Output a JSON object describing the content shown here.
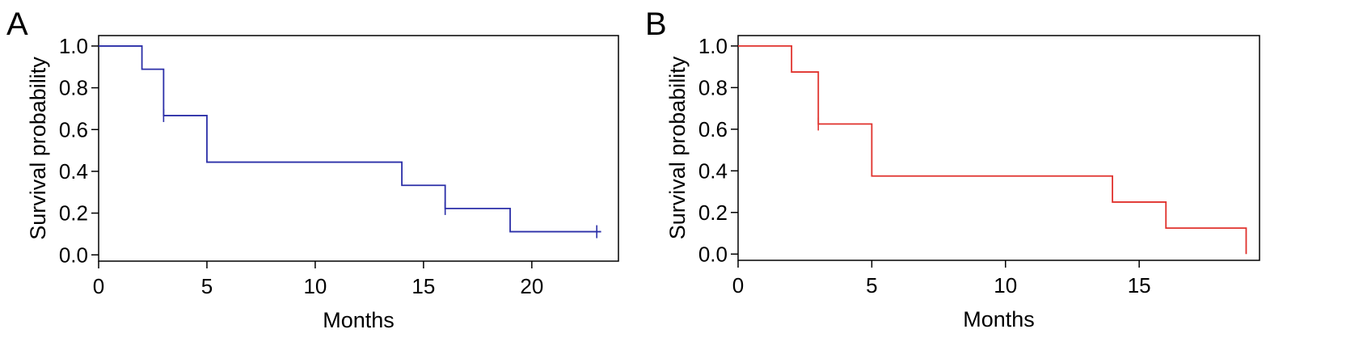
{
  "chart_data": [
    {
      "type": "line",
      "panel_label": "A",
      "title": "",
      "xlabel": "Months",
      "ylabel": "Survival probability",
      "xlim": [
        0,
        24
      ],
      "ylim": [
        -0.03,
        1.05
      ],
      "x_ticks": [
        "0",
        "5",
        "10",
        "15",
        "20"
      ],
      "y_ticks": [
        "0.0",
        "0.2",
        "0.4",
        "0.6",
        "0.8",
        "1.0"
      ],
      "grid": false,
      "legend": "none",
      "series": [
        {
          "step": true,
          "x": [
            0,
            2,
            3,
            5,
            14,
            16,
            19,
            23.2
          ],
          "y": [
            1.0,
            0.889,
            0.667,
            0.444,
            0.333,
            0.222,
            0.111,
            0.111
          ],
          "censor_x": [
            3,
            16,
            23
          ],
          "color": "#2b2fa8"
        }
      ]
    },
    {
      "type": "line",
      "panel_label": "B",
      "title": "",
      "xlabel": "Months",
      "ylabel": "Survival probability",
      "xlim": [
        0,
        19.5
      ],
      "ylim": [
        -0.03,
        1.05
      ],
      "x_ticks": [
        "0",
        "5",
        "10",
        "15"
      ],
      "y_ticks": [
        "0.0",
        "0.2",
        "0.4",
        "0.6",
        "0.8",
        "1.0"
      ],
      "grid": false,
      "legend": "none",
      "series": [
        {
          "step": true,
          "x": [
            0,
            2,
            3,
            5,
            14,
            16,
            19
          ],
          "y": [
            1.0,
            0.875,
            0.625,
            0.375,
            0.25,
            0.125,
            0.0
          ],
          "censor_x": [
            3
          ],
          "color": "#e0322d"
        }
      ]
    }
  ]
}
